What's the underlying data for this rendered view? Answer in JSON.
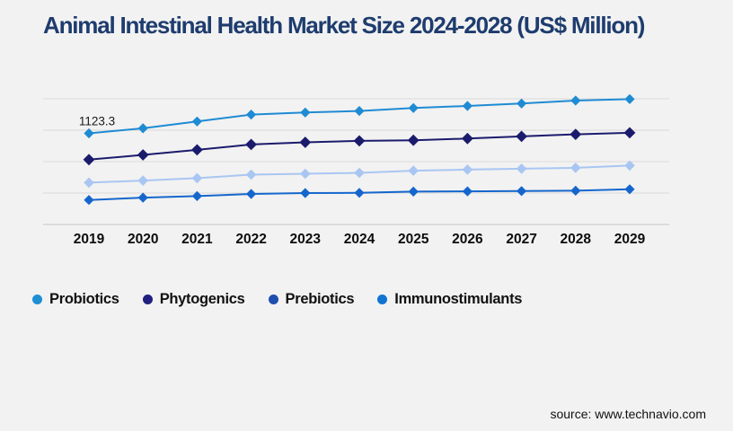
{
  "title": "Animal Intestinal Health Market Size 2024-2028 (US$ Million)",
  "source": "source: www.technavio.com",
  "colors": {
    "background": "#f2f2f2",
    "title": "#1e3c6e",
    "gridline": "#d9d9d9",
    "axis_line": "#c6c6c6",
    "tick_label": "#0d0d0d",
    "annotation_text": "#1a1a1a"
  },
  "chart_data": {
    "type": "line",
    "x": [
      2019,
      2020,
      2021,
      2022,
      2023,
      2024,
      2025,
      2026,
      2027,
      2028,
      2029
    ],
    "xlabel": "",
    "ylabel": "",
    "ylim": [
      0,
      1550
    ],
    "grid": true,
    "legend_position": "bottom",
    "marker": "diamond",
    "annotation": {
      "series": "Probiotics",
      "x": 2019,
      "label": "1123.3",
      "value": 1123.3
    },
    "series": [
      {
        "name": "Probiotics",
        "color": "#1f8bd3",
        "legend_color": "#1f8ed2",
        "values": [
          1123.3,
          1186,
          1270,
          1355,
          1381,
          1399,
          1436,
          1461,
          1491,
          1528,
          1546
        ]
      },
      {
        "name": "Phytogenics",
        "color": "#1b1b6d",
        "legend_color": "#202080",
        "values": [
          799,
          858,
          920,
          986,
          1013,
          1031,
          1038,
          1060,
          1086,
          1112,
          1130
        ]
      },
      {
        "name": "Prebiotics",
        "color": "#a9c6f2",
        "legend_color": "#1e4fae",
        "values": [
          516,
          541,
          571,
          615,
          626,
          637,
          663,
          677,
          688,
          699,
          726
        ]
      },
      {
        "name": "Immunostimulants",
        "color": "#1566cc",
        "legend_color": "#1274d2",
        "values": [
          302,
          331,
          350,
          376,
          387,
          390,
          405,
          409,
          412,
          416,
          434
        ]
      }
    ]
  }
}
